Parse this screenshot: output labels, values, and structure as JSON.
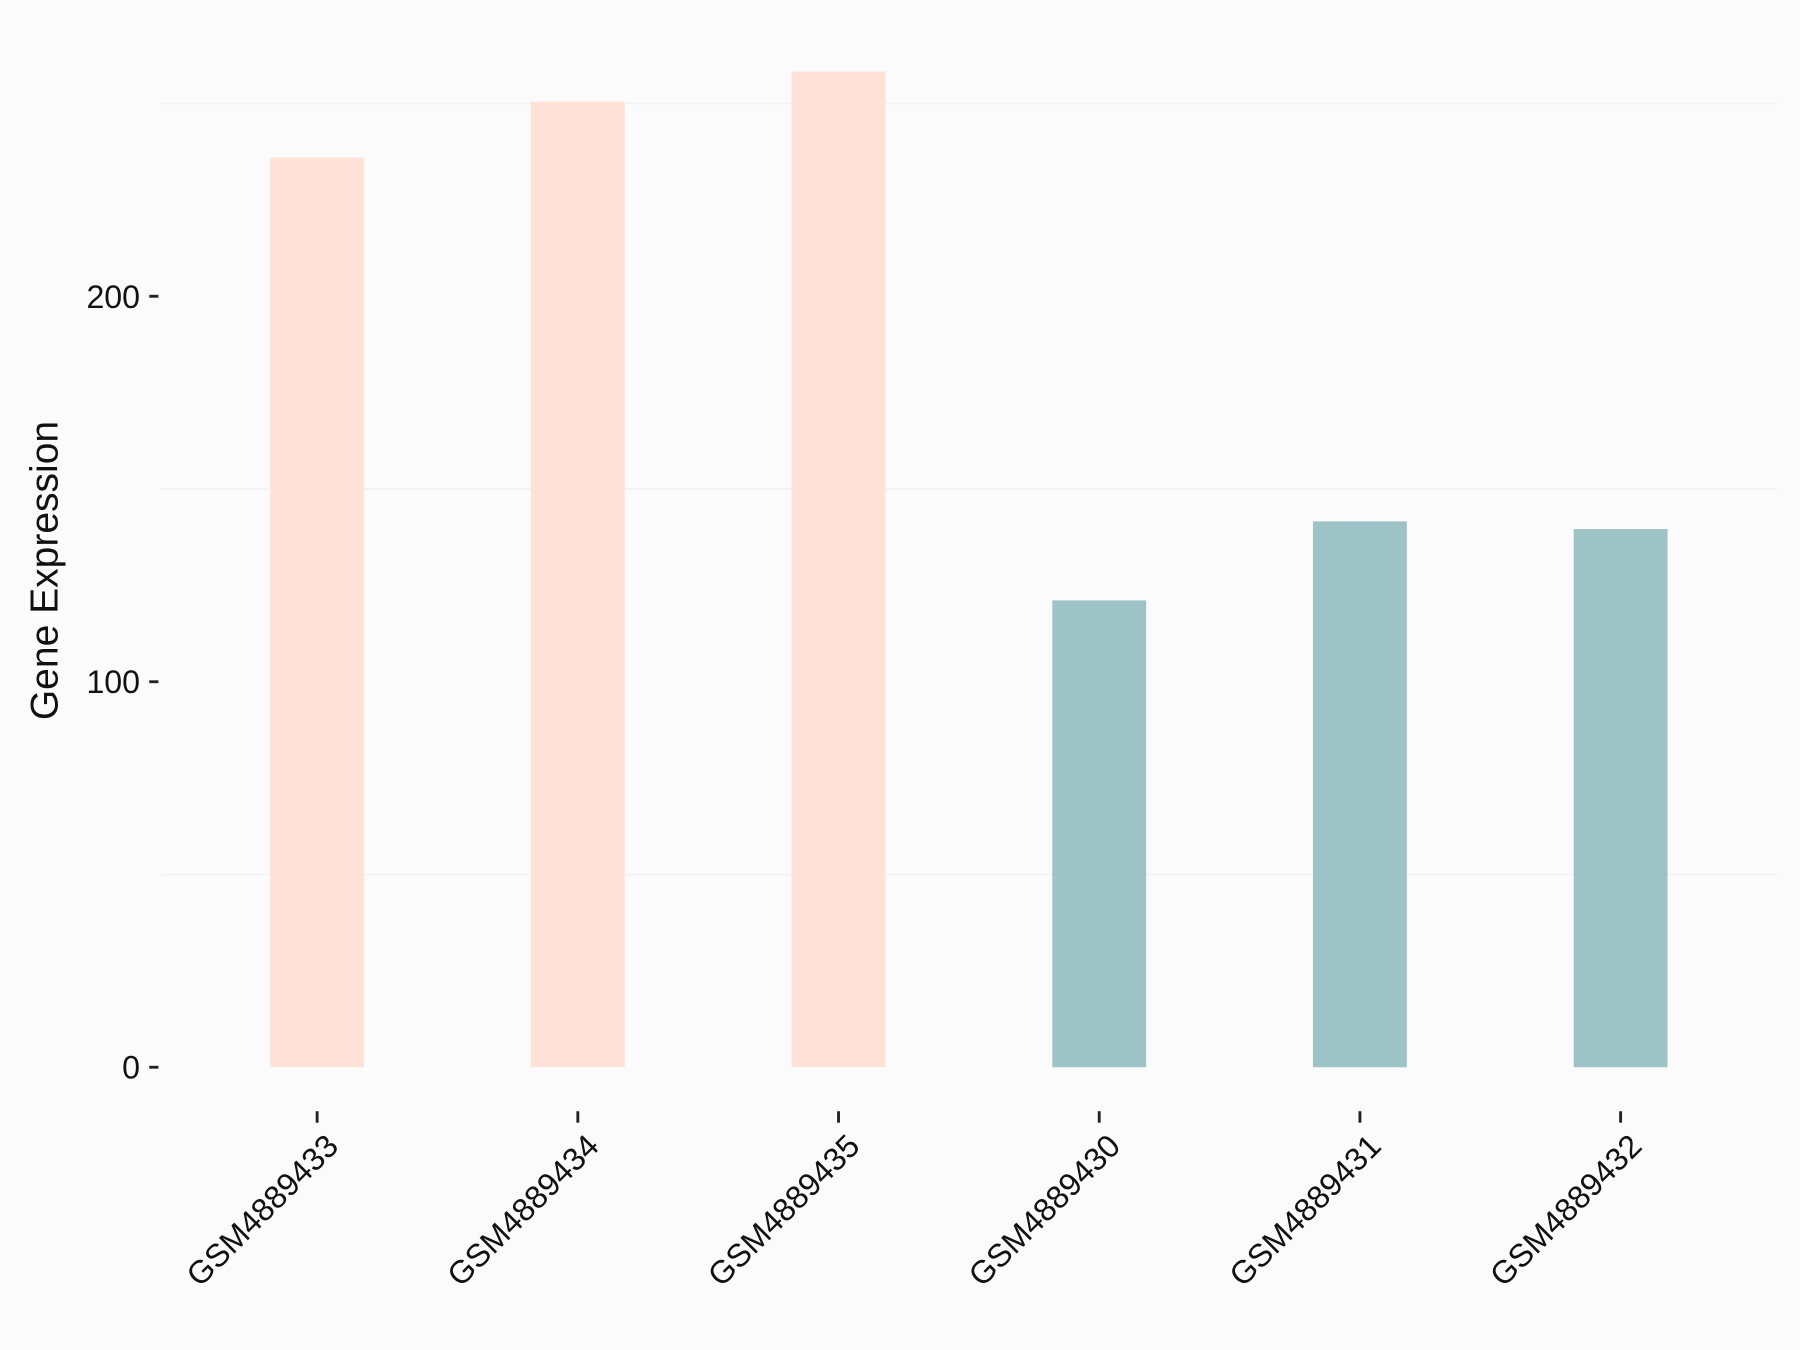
{
  "chart_data": {
    "type": "bar",
    "y_label": "Gene Expression",
    "categories": [
      "GSM4889433",
      "GSM4889434",
      "GSM4889435",
      "GSM4889430",
      "GSM4889431",
      "GSM4889432"
    ],
    "values": [
      236,
      250.5,
      258.3,
      121.1,
      141.6,
      139.6
    ],
    "colors": [
      "#ffe1d7",
      "#ffe1d7",
      "#ffe1d7",
      "#9dc3c7",
      "#9dc3c7",
      "#9dc3c7"
    ],
    "ylim": [
      -12.9,
      271.2
    ],
    "yticks": [
      0,
      100,
      200
    ],
    "minor_yticks": [
      50,
      150,
      250
    ],
    "grid": true
  }
}
